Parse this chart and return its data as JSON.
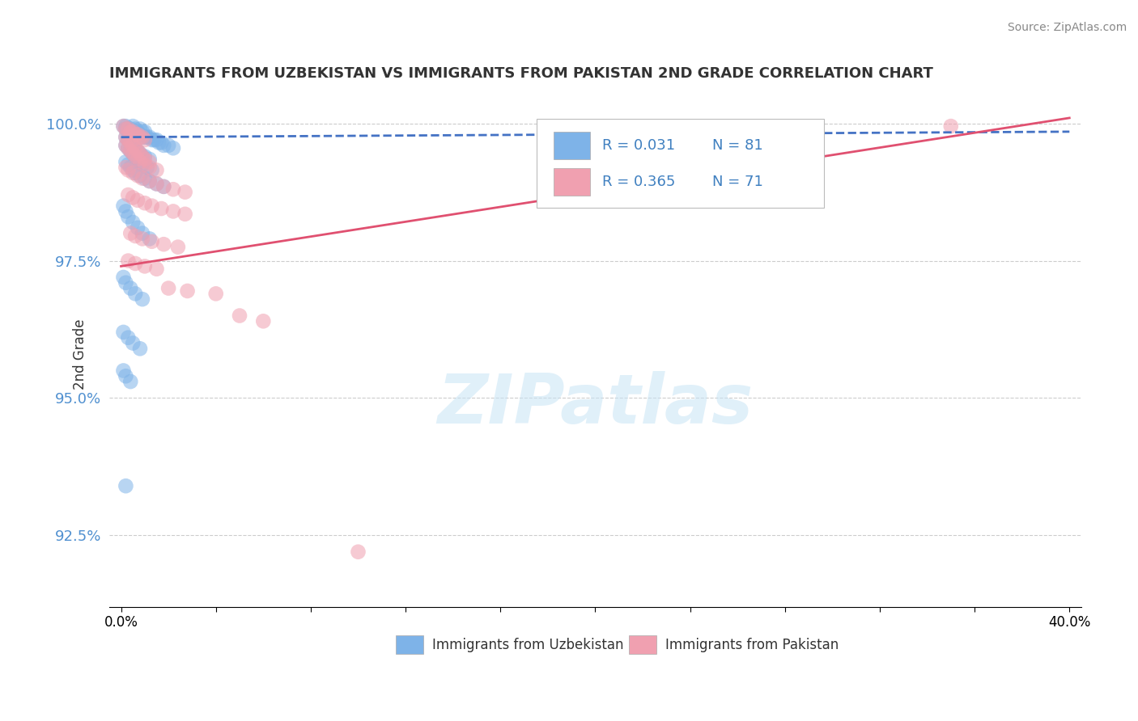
{
  "title": "IMMIGRANTS FROM UZBEKISTAN VS IMMIGRANTS FROM PAKISTAN 2ND GRADE CORRELATION CHART",
  "source_text": "Source: ZipAtlas.com",
  "ylabel": "2nd Grade",
  "xlim": [
    -0.005,
    0.405
  ],
  "ylim": [
    0.912,
    1.004
  ],
  "xticks": [
    0.0,
    0.04,
    0.08,
    0.12,
    0.16,
    0.2,
    0.24,
    0.28,
    0.32,
    0.36,
    0.4
  ],
  "xtick_labels": [
    "0.0%",
    "",
    "",
    "",
    "",
    "",
    "",
    "",
    "",
    "",
    "40.0%"
  ],
  "yticks": [
    0.925,
    0.95,
    0.975,
    1.0
  ],
  "ytick_labels": [
    "92.5%",
    "95.0%",
    "97.5%",
    "100.0%"
  ],
  "color_uzbekistan": "#7EB3E8",
  "color_pakistan": "#F0A0B0",
  "trendline_uzbekistan_color": "#4472C4",
  "trendline_pakistan_color": "#E05070",
  "watermark": "ZIPatlas",
  "uzbekistan_x": [
    0.001,
    0.002,
    0.002,
    0.003,
    0.003,
    0.004,
    0.004,
    0.005,
    0.005,
    0.005,
    0.006,
    0.006,
    0.007,
    0.007,
    0.008,
    0.008,
    0.009,
    0.009,
    0.01,
    0.01,
    0.011,
    0.012,
    0.013,
    0.014,
    0.015,
    0.016,
    0.017,
    0.018,
    0.02,
    0.022,
    0.002,
    0.003,
    0.004,
    0.005,
    0.006,
    0.007,
    0.008,
    0.009,
    0.01,
    0.012,
    0.002,
    0.003,
    0.004,
    0.005,
    0.006,
    0.007,
    0.008,
    0.009,
    0.011,
    0.013,
    0.002,
    0.003,
    0.004,
    0.005,
    0.006,
    0.008,
    0.01,
    0.012,
    0.015,
    0.018,
    0.001,
    0.002,
    0.003,
    0.005,
    0.007,
    0.009,
    0.012,
    0.001,
    0.002,
    0.004,
    0.006,
    0.009,
    0.001,
    0.003,
    0.005,
    0.008,
    0.001,
    0.002,
    0.004,
    0.002
  ],
  "uzbekistan_y": [
    0.9995,
    0.9995,
    0.999,
    0.999,
    0.9985,
    0.9985,
    0.999,
    0.9995,
    0.9985,
    0.998,
    0.9985,
    0.999,
    0.9985,
    0.998,
    0.999,
    0.998,
    0.9985,
    0.9975,
    0.9985,
    0.9975,
    0.9975,
    0.9975,
    0.997,
    0.997,
    0.997,
    0.9965,
    0.9965,
    0.996,
    0.996,
    0.9955,
    0.9975,
    0.997,
    0.9965,
    0.996,
    0.9955,
    0.995,
    0.9945,
    0.994,
    0.994,
    0.9935,
    0.996,
    0.9955,
    0.995,
    0.9945,
    0.994,
    0.9935,
    0.993,
    0.9925,
    0.992,
    0.9915,
    0.993,
    0.9925,
    0.992,
    0.9915,
    0.991,
    0.9905,
    0.99,
    0.9895,
    0.989,
    0.9885,
    0.985,
    0.984,
    0.983,
    0.982,
    0.981,
    0.98,
    0.979,
    0.972,
    0.971,
    0.97,
    0.969,
    0.968,
    0.962,
    0.961,
    0.96,
    0.959,
    0.955,
    0.954,
    0.953,
    0.934
  ],
  "pakistan_x": [
    0.001,
    0.002,
    0.003,
    0.004,
    0.005,
    0.006,
    0.007,
    0.008,
    0.009,
    0.01,
    0.002,
    0.003,
    0.004,
    0.005,
    0.006,
    0.007,
    0.008,
    0.009,
    0.01,
    0.012,
    0.002,
    0.003,
    0.004,
    0.005,
    0.006,
    0.007,
    0.008,
    0.01,
    0.012,
    0.015,
    0.002,
    0.003,
    0.005,
    0.007,
    0.009,
    0.012,
    0.015,
    0.018,
    0.022,
    0.027,
    0.003,
    0.005,
    0.007,
    0.01,
    0.013,
    0.017,
    0.022,
    0.027,
    0.004,
    0.006,
    0.009,
    0.013,
    0.018,
    0.024,
    0.35,
    0.003,
    0.006,
    0.01,
    0.015,
    0.02,
    0.028,
    0.04,
    0.05,
    0.06,
    0.1
  ],
  "pakistan_y": [
    0.9995,
    0.999,
    0.999,
    0.9985,
    0.9985,
    0.998,
    0.998,
    0.9975,
    0.9975,
    0.997,
    0.9975,
    0.997,
    0.9965,
    0.996,
    0.9955,
    0.995,
    0.9945,
    0.994,
    0.9935,
    0.993,
    0.996,
    0.9955,
    0.995,
    0.9945,
    0.994,
    0.9935,
    0.993,
    0.9925,
    0.992,
    0.9915,
    0.992,
    0.9915,
    0.991,
    0.9905,
    0.99,
    0.9895,
    0.989,
    0.9885,
    0.988,
    0.9875,
    0.987,
    0.9865,
    0.986,
    0.9855,
    0.985,
    0.9845,
    0.984,
    0.9835,
    0.98,
    0.9795,
    0.979,
    0.9785,
    0.978,
    0.9775,
    0.9995,
    0.975,
    0.9745,
    0.974,
    0.9735,
    0.97,
    0.9695,
    0.969,
    0.965,
    0.964,
    0.922
  ],
  "trendline_uzbek_x0": 0.0,
  "trendline_uzbek_x1": 0.4,
  "trendline_uzbek_y0": 0.9975,
  "trendline_uzbek_y1": 0.9985,
  "trendline_pak_x0": 0.0,
  "trendline_pak_x1": 0.4,
  "trendline_pak_y0": 0.974,
  "trendline_pak_y1": 1.001
}
